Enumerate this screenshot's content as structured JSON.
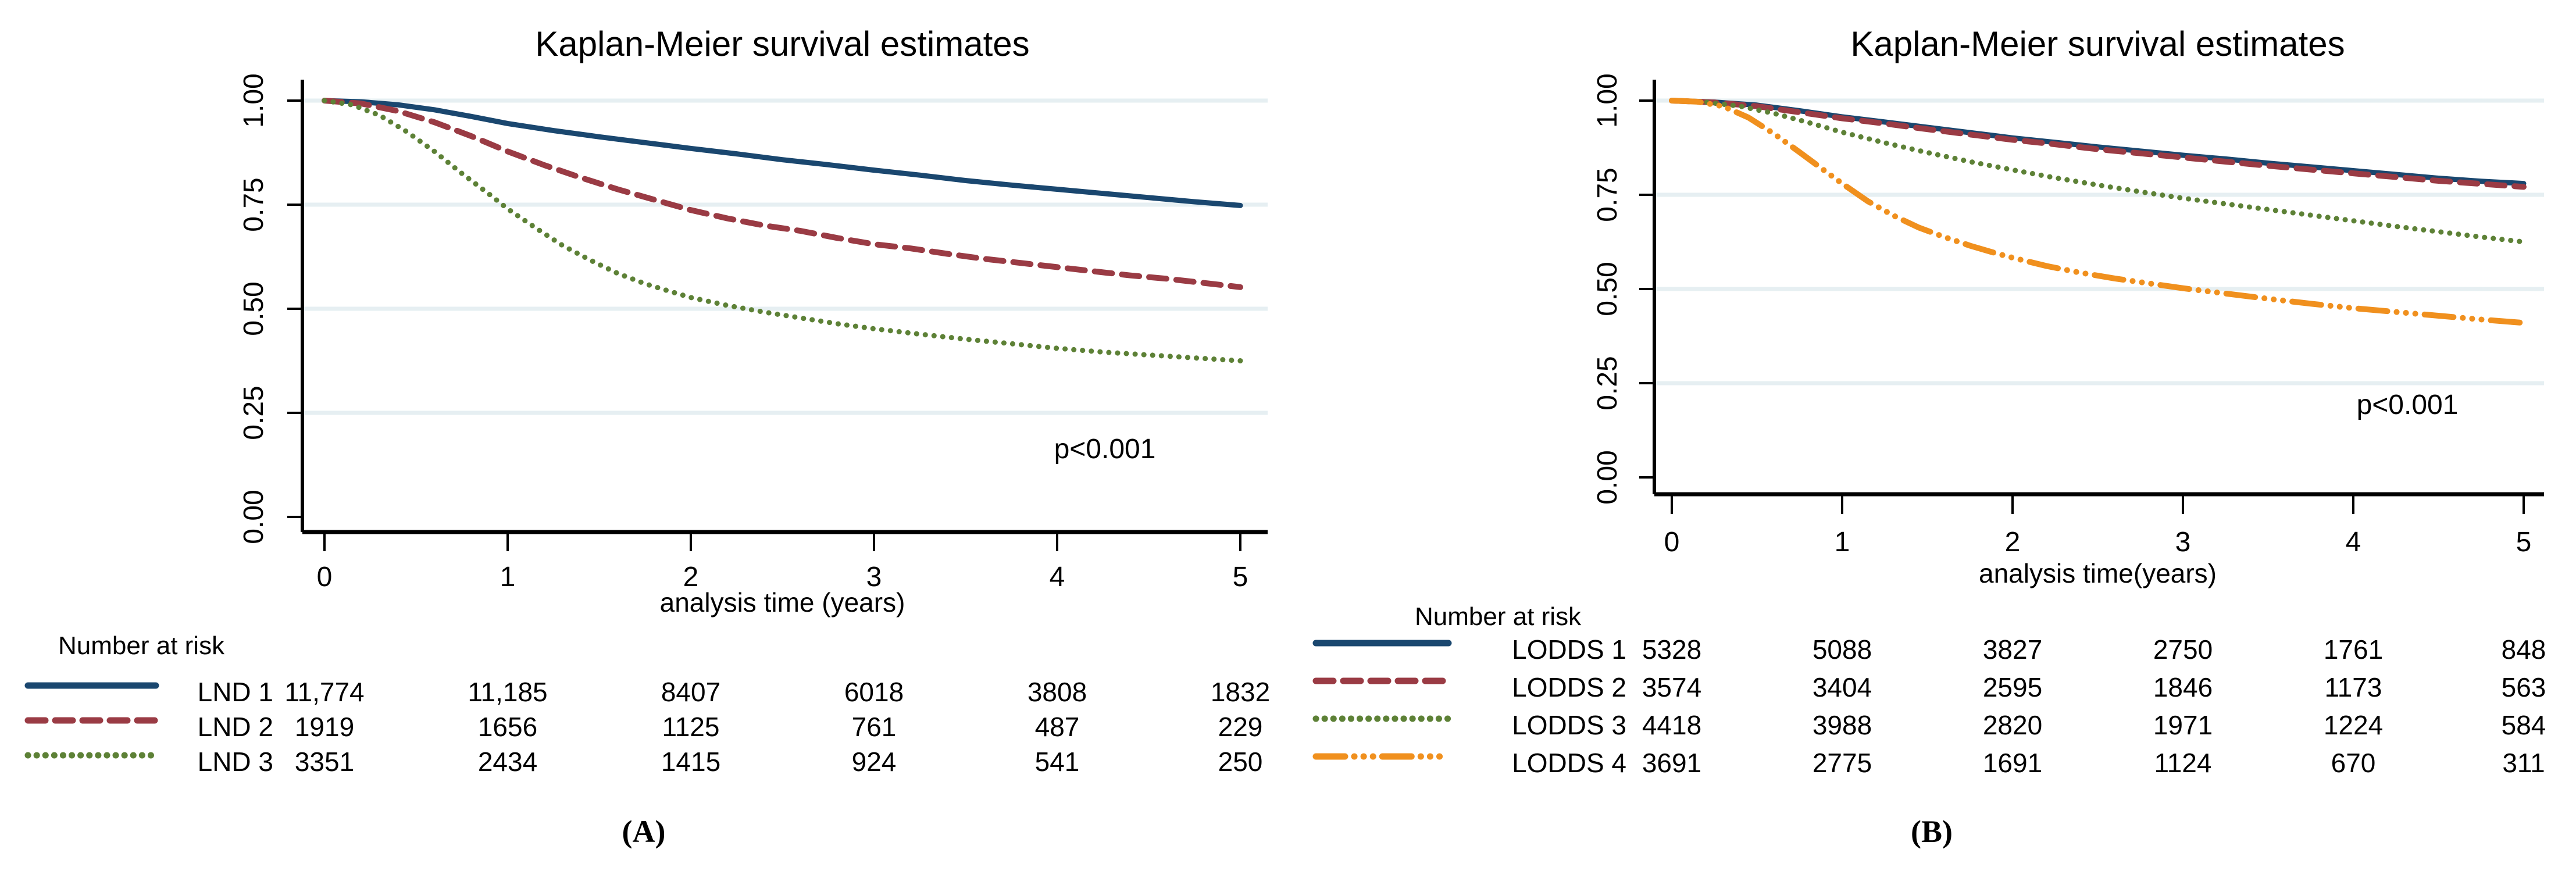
{
  "figure": {
    "kind": "Kaplan-Meier survival figure, two panels"
  },
  "colors": {
    "title": "#1f3864",
    "grid": "#e6eff2",
    "axis": "#000000",
    "navy": "#1a476f",
    "maroon": "#9a3b44",
    "green": "#5d8136",
    "orange": "#f0901e"
  },
  "chart_data": [
    {
      "type": "line",
      "panel": "(A)",
      "title": "Kaplan-Meier survival estimates",
      "xlabel": "analysis time (years)",
      "p_value": "p<0.001",
      "xlim": [
        0,
        5
      ],
      "ylim": [
        0,
        1
      ],
      "grid": "on",
      "legend_position": "risk-table-left",
      "x_tick_values": [
        0,
        1,
        2,
        3,
        4,
        5
      ],
      "x_tick_labels": [
        "0",
        "1",
        "2",
        "3",
        "4",
        "5"
      ],
      "y_tick_values": [
        0,
        0.25,
        0.5,
        0.75,
        1
      ],
      "y_tick_labels": [
        "0.00",
        "0.25",
        "0.50",
        "0.75",
        "1.00"
      ],
      "series": [
        {
          "name": "LND 1",
          "color_key": "navy",
          "line_style": "solid",
          "points": [
            [
              0,
              1
            ],
            [
              0.2,
              0.997
            ],
            [
              0.4,
              0.99
            ],
            [
              0.6,
              0.978
            ],
            [
              0.8,
              0.962
            ],
            [
              1,
              0.945
            ],
            [
              1.25,
              0.928
            ],
            [
              1.5,
              0.913
            ],
            [
              1.75,
              0.899
            ],
            [
              2,
              0.885
            ],
            [
              2.25,
              0.872
            ],
            [
              2.5,
              0.858
            ],
            [
              2.75,
              0.846
            ],
            [
              3,
              0.833
            ],
            [
              3.25,
              0.821
            ],
            [
              3.5,
              0.808
            ],
            [
              3.75,
              0.797
            ],
            [
              4,
              0.787
            ],
            [
              4.25,
              0.777
            ],
            [
              4.5,
              0.767
            ],
            [
              4.75,
              0.757
            ],
            [
              5,
              0.748
            ]
          ]
        },
        {
          "name": "LND 2",
          "color_key": "maroon",
          "line_style": "long-dash",
          "points": [
            [
              0,
              1
            ],
            [
              0.2,
              0.993
            ],
            [
              0.4,
              0.975
            ],
            [
              0.6,
              0.948
            ],
            [
              0.8,
              0.915
            ],
            [
              1,
              0.878
            ],
            [
              1.2,
              0.845
            ],
            [
              1.4,
              0.815
            ],
            [
              1.6,
              0.787
            ],
            [
              1.8,
              0.762
            ],
            [
              2,
              0.737
            ],
            [
              2.2,
              0.717
            ],
            [
              2.4,
              0.7
            ],
            [
              2.6,
              0.687
            ],
            [
              2.8,
              0.67
            ],
            [
              3,
              0.655
            ],
            [
              3.2,
              0.645
            ],
            [
              3.4,
              0.632
            ],
            [
              3.6,
              0.62
            ],
            [
              3.8,
              0.61
            ],
            [
              4,
              0.6
            ],
            [
              4.2,
              0.59
            ],
            [
              4.4,
              0.58
            ],
            [
              4.6,
              0.572
            ],
            [
              4.8,
              0.562
            ],
            [
              5,
              0.552
            ]
          ]
        },
        {
          "name": "LND 3",
          "color_key": "green",
          "line_style": "dot",
          "points": [
            [
              0,
              1
            ],
            [
              0.15,
              0.99
            ],
            [
              0.3,
              0.965
            ],
            [
              0.45,
              0.925
            ],
            [
              0.6,
              0.878
            ],
            [
              0.75,
              0.825
            ],
            [
              0.9,
              0.775
            ],
            [
              1,
              0.74
            ],
            [
              1.15,
              0.695
            ],
            [
              1.3,
              0.652
            ],
            [
              1.45,
              0.617
            ],
            [
              1.6,
              0.585
            ],
            [
              1.75,
              0.56
            ],
            [
              1.9,
              0.54
            ],
            [
              2,
              0.527
            ],
            [
              2.2,
              0.508
            ],
            [
              2.4,
              0.492
            ],
            [
              2.6,
              0.478
            ],
            [
              2.8,
              0.464
            ],
            [
              3,
              0.452
            ],
            [
              3.25,
              0.439
            ],
            [
              3.5,
              0.427
            ],
            [
              3.75,
              0.416
            ],
            [
              4,
              0.405
            ],
            [
              4.25,
              0.396
            ],
            [
              4.5,
              0.389
            ],
            [
              4.75,
              0.382
            ],
            [
              5,
              0.375
            ]
          ]
        }
      ],
      "risk_table": {
        "header": "Number at risk",
        "time_values": [
          0,
          1,
          2,
          3,
          4,
          5
        ],
        "rows": [
          {
            "label": "LND 1",
            "counts": [
              "11,774",
              "11,185",
              "8407",
              "6018",
              "3808",
              "1832"
            ]
          },
          {
            "label": "LND 2",
            "counts": [
              "1919",
              "1656",
              "1125",
              "761",
              "487",
              "229"
            ]
          },
          {
            "label": "LND 3",
            "counts": [
              "3351",
              "2434",
              "1415",
              "924",
              "541",
              "250"
            ]
          }
        ]
      }
    },
    {
      "type": "line",
      "panel": "(B)",
      "title": "Kaplan-Meier survival estimates",
      "xlabel": "analysis time(years)",
      "p_value": "p<0.001",
      "xlim": [
        0,
        5
      ],
      "ylim": [
        0,
        1
      ],
      "grid": "on",
      "legend_position": "risk-table-left",
      "x_tick_values": [
        0,
        1,
        2,
        3,
        4,
        5
      ],
      "x_tick_labels": [
        "0",
        "1",
        "2",
        "3",
        "4",
        "5"
      ],
      "y_tick_values": [
        0,
        0.25,
        0.5,
        0.75,
        1
      ],
      "y_tick_labels": [
        "0.00",
        "0.25",
        "0.50",
        "0.75",
        "1.00"
      ],
      "series": [
        {
          "name": "LODDS 1",
          "color_key": "navy",
          "line_style": "solid",
          "points": [
            [
              0,
              1
            ],
            [
              0.25,
              0.996
            ],
            [
              0.5,
              0.988
            ],
            [
              0.75,
              0.973
            ],
            [
              1,
              0.957
            ],
            [
              1.25,
              0.943
            ],
            [
              1.5,
              0.929
            ],
            [
              1.75,
              0.915
            ],
            [
              2,
              0.901
            ],
            [
              2.25,
              0.889
            ],
            [
              2.5,
              0.877
            ],
            [
              2.75,
              0.866
            ],
            [
              3,
              0.855
            ],
            [
              3.25,
              0.845
            ],
            [
              3.5,
              0.834
            ],
            [
              3.75,
              0.824
            ],
            [
              4,
              0.814
            ],
            [
              4.25,
              0.804
            ],
            [
              4.5,
              0.794
            ],
            [
              4.75,
              0.786
            ],
            [
              5,
              0.78
            ]
          ]
        },
        {
          "name": "LODDS 2",
          "color_key": "maroon",
          "line_style": "long-dash",
          "points": [
            [
              0,
              1
            ],
            [
              0.25,
              0.995
            ],
            [
              0.5,
              0.985
            ],
            [
              0.75,
              0.969
            ],
            [
              1,
              0.953
            ],
            [
              1.25,
              0.939
            ],
            [
              1.5,
              0.924
            ],
            [
              1.75,
              0.91
            ],
            [
              2,
              0.896
            ],
            [
              2.25,
              0.884
            ],
            [
              2.5,
              0.871
            ],
            [
              2.75,
              0.86
            ],
            [
              3,
              0.849
            ],
            [
              3.25,
              0.838
            ],
            [
              3.5,
              0.827
            ],
            [
              3.75,
              0.817
            ],
            [
              4,
              0.807
            ],
            [
              4.25,
              0.797
            ],
            [
              4.5,
              0.787
            ],
            [
              4.75,
              0.779
            ],
            [
              5,
              0.771
            ]
          ]
        },
        {
          "name": "LODDS 3",
          "color_key": "green",
          "line_style": "dot",
          "points": [
            [
              0,
              1
            ],
            [
              0.2,
              0.996
            ],
            [
              0.4,
              0.985
            ],
            [
              0.6,
              0.966
            ],
            [
              0.8,
              0.942
            ],
            [
              1,
              0.916
            ],
            [
              1.25,
              0.888
            ],
            [
              1.5,
              0.862
            ],
            [
              1.75,
              0.838
            ],
            [
              2,
              0.816
            ],
            [
              2.25,
              0.795
            ],
            [
              2.5,
              0.776
            ],
            [
              2.75,
              0.758
            ],
            [
              3,
              0.741
            ],
            [
              3.25,
              0.726
            ],
            [
              3.5,
              0.711
            ],
            [
              3.75,
              0.696
            ],
            [
              4,
              0.681
            ],
            [
              4.25,
              0.666
            ],
            [
              4.5,
              0.652
            ],
            [
              4.75,
              0.638
            ],
            [
              5,
              0.625
            ]
          ]
        },
        {
          "name": "LODDS 4",
          "color_key": "orange",
          "line_style": "dash-dot-dot",
          "points": [
            [
              0,
              1
            ],
            [
              0.15,
              0.997
            ],
            [
              0.3,
              0.985
            ],
            [
              0.45,
              0.955
            ],
            [
              0.6,
              0.912
            ],
            [
              0.75,
              0.863
            ],
            [
              0.9,
              0.813
            ],
            [
              1,
              0.78
            ],
            [
              1.15,
              0.733
            ],
            [
              1.3,
              0.695
            ],
            [
              1.45,
              0.663
            ],
            [
              1.6,
              0.638
            ],
            [
              1.75,
              0.615
            ],
            [
              1.9,
              0.595
            ],
            [
              2,
              0.583
            ],
            [
              2.2,
              0.561
            ],
            [
              2.4,
              0.543
            ],
            [
              2.6,
              0.528
            ],
            [
              2.8,
              0.515
            ],
            [
              3,
              0.502
            ],
            [
              3.25,
              0.488
            ],
            [
              3.5,
              0.474
            ],
            [
              3.75,
              0.461
            ],
            [
              4,
              0.449
            ],
            [
              4.25,
              0.439
            ],
            [
              4.5,
              0.429
            ],
            [
              4.75,
              0.419
            ],
            [
              5,
              0.41
            ]
          ]
        }
      ],
      "risk_table": {
        "header": "Number at risk",
        "time_values": [
          0,
          1,
          2,
          3,
          4,
          5
        ],
        "rows": [
          {
            "label": "LODDS 1",
            "counts": [
              "5328",
              "5088",
              "3827",
              "2750",
              "1761",
              "848"
            ]
          },
          {
            "label": "LODDS 2",
            "counts": [
              "3574",
              "3404",
              "2595",
              "1846",
              "1173",
              "563"
            ]
          },
          {
            "label": "LODDS 3",
            "counts": [
              "4418",
              "3988",
              "2820",
              "1971",
              "1224",
              "584"
            ]
          },
          {
            "label": "LODDS 4",
            "counts": [
              "3691",
              "2775",
              "1691",
              "1124",
              "670",
              "311"
            ]
          }
        ]
      }
    }
  ]
}
